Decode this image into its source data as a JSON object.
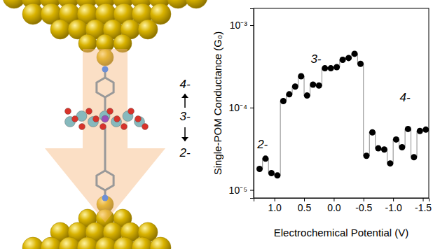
{
  "chart_data": {
    "type": "scatter",
    "x_label": "Electrochemical Potential (V)",
    "y_label": "Single-POM Conductance (G₀)",
    "x": [
      1.25,
      1.15,
      1.05,
      0.95,
      0.85,
      0.75,
      0.65,
      0.55,
      0.45,
      0.35,
      0.25,
      0.15,
      0.05,
      -0.05,
      -0.15,
      -0.25,
      -0.35,
      -0.45,
      -0.55,
      -0.65,
      -0.75,
      -0.85,
      -0.95,
      -1.05,
      -1.15,
      -1.25,
      -1.35,
      -1.45,
      -1.55
    ],
    "values": [
      1.8e-05,
      2.4e-05,
      1.6e-05,
      1.5e-05,
      0.00012,
      0.000145,
      0.00018,
      0.00024,
      0.00014,
      0.00019,
      0.000185,
      0.0003,
      0.0003,
      0.00031,
      0.00038,
      0.0004,
      0.00045,
      0.00034,
      2.6e-05,
      5e-05,
      3.2e-05,
      3.1e-05,
      2.1e-05,
      4.1e-05,
      3.3e-05,
      5.5e-05,
      2.5e-05,
      5.2e-05,
      5.4e-05
    ],
    "color": "#000000",
    "marker": "circle",
    "line_style": "step",
    "log": "y",
    "xlim": [
      1.35,
      -1.6
    ],
    "ylim": [
      8e-06,
      0.0016
    ],
    "xticks": [
      {
        "value": 1,
        "label": "1.0"
      },
      0.5,
      {
        "value": 0,
        "label": "0.0"
      },
      -0.5,
      {
        "value": -1,
        "label": "-1.0"
      },
      -1.5
    ],
    "yticks": [
      {
        "value": 1e-05,
        "label": "10⁻⁵"
      },
      {
        "value": 0.0001,
        "label": "10⁻⁴"
      },
      {
        "value": 0.001,
        "label": "10⁻³"
      }
    ],
    "annotations": [
      {
        "text": "2-",
        "x": 1.2,
        "y": 3.5e-05
      },
      {
        "text": "3-",
        "x": 0.3,
        "y": 0.00038
      },
      {
        "text": "4-",
        "x": -1.2,
        "y": 0.00013
      }
    ]
  },
  "illustration": {
    "charge_labels": [
      "4-",
      "3-",
      "2-"
    ]
  }
}
